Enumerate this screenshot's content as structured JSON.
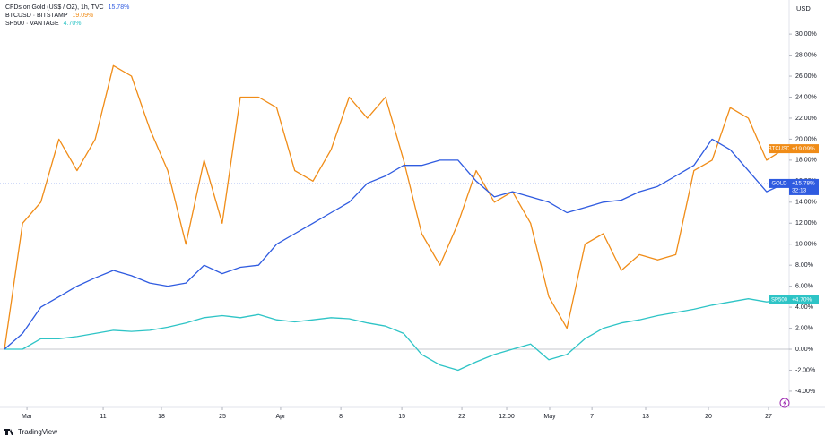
{
  "chart_data": {
    "type": "line",
    "currency": "USD",
    "brand": "TradingView",
    "countdown": "32:13",
    "xlim": [
      0,
      43
    ],
    "xticks": [
      {
        "value": 1.24,
        "label": "Mar"
      },
      {
        "value": 5.44,
        "label": "11"
      },
      {
        "value": 8.65,
        "label": "18"
      },
      {
        "value": 12.01,
        "label": "25"
      },
      {
        "value": 15.22,
        "label": "Apr"
      },
      {
        "value": 18.54,
        "label": "8"
      },
      {
        "value": 21.9,
        "label": "15"
      },
      {
        "value": 25.21,
        "label": "22"
      },
      {
        "value": 27.68,
        "label": "12:00"
      },
      {
        "value": 30.05,
        "label": "May"
      },
      {
        "value": 32.38,
        "label": "7"
      },
      {
        "value": 35.34,
        "label": "13"
      },
      {
        "value": 38.8,
        "label": "20"
      },
      {
        "value": 42.11,
        "label": "27"
      }
    ],
    "ylim": [
      -5.54,
      33.25
    ],
    "yticks": [
      {
        "value": -4,
        "label": "-4.00%"
      },
      {
        "value": -2,
        "label": "-2.00%"
      },
      {
        "value": 0,
        "label": "0.00%"
      },
      {
        "value": 2,
        "label": "2.00%"
      },
      {
        "value": 4,
        "label": "4.00%"
      },
      {
        "value": 6,
        "label": "6.00%"
      },
      {
        "value": 8,
        "label": "8.00%"
      },
      {
        "value": 10,
        "label": "10.00%"
      },
      {
        "value": 12,
        "label": "12.00%"
      },
      {
        "value": 14,
        "label": "14.00%"
      },
      {
        "value": 16,
        "label": "16.00%"
      },
      {
        "value": 18,
        "label": "18.00%"
      },
      {
        "value": 20,
        "label": "20.00%"
      },
      {
        "value": 22,
        "label": "22.00%"
      },
      {
        "value": 24,
        "label": "24.00%"
      },
      {
        "value": 26,
        "label": "26.00%"
      },
      {
        "value": 28,
        "label": "28.00%"
      },
      {
        "value": 30,
        "label": "30.00%"
      }
    ],
    "baseline": 0,
    "grid": false,
    "series": [
      {
        "name": "CFDs on Gold (US$ / OZ), 1h, TVC",
        "badge": "GOLD",
        "color": "#2f5be0",
        "last_label": "15.78%",
        "badge_label": "+15.78%",
        "values": [
          0,
          1.5,
          4,
          5,
          6,
          6.8,
          7.5,
          7,
          6.3,
          6,
          6.3,
          8,
          7.2,
          7.8,
          8,
          10,
          11,
          12,
          13,
          14,
          15.8,
          16.5,
          17.5,
          17.5,
          18,
          18,
          16,
          14.5,
          15,
          14.5,
          14,
          13,
          13.5,
          14,
          14.2,
          15,
          15.5,
          16.5,
          17.5,
          20,
          19,
          17,
          15,
          15.78
        ]
      },
      {
        "name": "BTCUSD · BITSTAMP",
        "badge": "BTCUSD",
        "color": "#f08c17",
        "last_label": "19.09%",
        "badge_label": "+19.09%",
        "values": [
          0,
          12,
          14,
          20,
          17,
          20,
          27,
          26,
          21,
          17,
          10,
          18,
          12,
          24,
          24,
          23,
          17,
          16,
          19,
          24,
          22,
          24,
          18,
          11,
          8,
          12,
          17,
          14,
          15,
          12,
          5,
          2,
          10,
          11,
          7.5,
          9,
          8.5,
          9,
          17,
          18,
          23,
          22,
          18,
          19.09
        ]
      },
      {
        "name": "SP500 · VANTAGE",
        "badge": "SP500",
        "color": "#2ec4c6",
        "last_label": "4.70%",
        "badge_label": "+4.70%",
        "values": [
          0,
          0,
          1,
          1,
          1.2,
          1.5,
          1.8,
          1.7,
          1.8,
          2.1,
          2.5,
          3,
          3.2,
          3,
          3.3,
          2.8,
          2.6,
          2.8,
          3,
          2.9,
          2.5,
          2.2,
          1.5,
          -0.5,
          -1.5,
          -2,
          -1.2,
          -0.5,
          0,
          0.5,
          -1,
          -0.5,
          1,
          2,
          2.5,
          2.8,
          3.2,
          3.5,
          3.8,
          4.2,
          4.5,
          4.8,
          4.5,
          4.7
        ]
      }
    ]
  }
}
